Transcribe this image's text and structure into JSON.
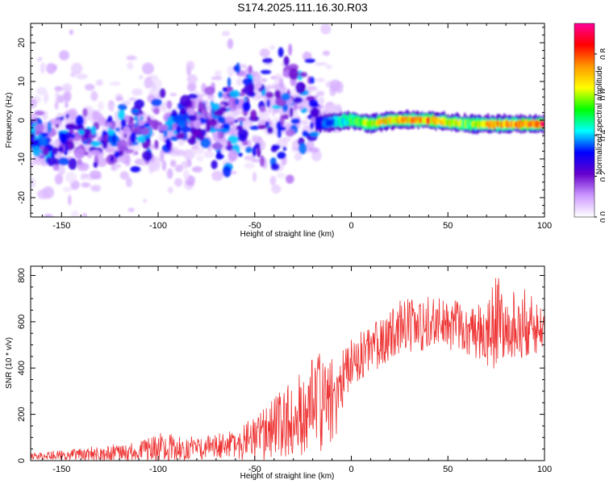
{
  "title": "S174.2025.111.16.30.R03",
  "colors": {
    "snr_line": "#ee3333",
    "axis": "#000000",
    "background": "#ffffff"
  },
  "chart_data": [
    {
      "type": "heatmap",
      "xlabel": "Height of straight line (km)",
      "ylabel": "Frequency (Hz)",
      "xlim": [
        -166,
        100
      ],
      "ylim": [
        -25,
        25
      ],
      "x_ticks": [
        -150,
        -100,
        -50,
        0,
        50,
        100
      ],
      "y_ticks": [
        -20,
        -10,
        0,
        10,
        20
      ],
      "grid": false,
      "colorbar": {
        "label": "Normalized spectral amplitude",
        "range": [
          0,
          0.95
        ],
        "ticks": [
          0.0,
          0.2,
          0.4,
          0.6,
          0.8
        ],
        "colormap": [
          "#ffffff",
          "#cc99ff",
          "#6600cc",
          "#0000ff",
          "#00ffff",
          "#00ff00",
          "#ffff00",
          "#ff9900",
          "#ff0000",
          "#ff0099"
        ]
      },
      "features": {
        "carrier_trace": {
          "x_range": [
            -18,
            100
          ],
          "frequency_hz": [
            [
              -18,
              -1
            ],
            [
              0,
              0
            ],
            [
              10,
              -1
            ],
            [
              20,
              0
            ],
            [
              40,
              0
            ],
            [
              60,
              -1
            ],
            [
              80,
              -1
            ],
            [
              100,
              -1
            ]
          ],
          "amplitude": [
            [
              -18,
              0.3
            ],
            [
              0,
              0.55
            ],
            [
              20,
              0.8
            ],
            [
              40,
              0.85
            ],
            [
              60,
              0.6
            ],
            [
              80,
              0.85
            ],
            [
              100,
              0.9
            ]
          ]
        },
        "scatter_region": {
          "x_range": [
            -166,
            -18
          ],
          "frequency_span_hz": [
            -20,
            20
          ],
          "typical_amplitude": 0.25
        }
      }
    },
    {
      "type": "line",
      "xlabel": "Height of straight line (km)",
      "ylabel": "SNR (10 * v/v)",
      "xlim": [
        -166,
        100
      ],
      "ylim": [
        0,
        840
      ],
      "x_ticks": [
        -150,
        -100,
        -50,
        0,
        50,
        100
      ],
      "y_ticks": [
        0,
        200,
        400,
        600,
        800
      ],
      "grid": false,
      "series": [
        {
          "x": [
            -166,
            -150,
            -130,
            -110,
            -100,
            -80,
            -60,
            -50,
            -40,
            -30,
            -20,
            -15,
            -10,
            -5,
            0,
            10,
            20,
            25,
            30,
            40,
            50,
            60,
            70,
            75,
            80,
            90,
            100
          ],
          "mean": [
            20,
            25,
            30,
            40,
            50,
            55,
            70,
            90,
            140,
            190,
            230,
            260,
            280,
            340,
            430,
            480,
            540,
            580,
            590,
            590,
            590,
            570,
            560,
            600,
            590,
            590,
            570
          ],
          "spread": [
            15,
            20,
            35,
            40,
            70,
            50,
            60,
            110,
            130,
            170,
            210,
            220,
            250,
            140,
            110,
            100,
            120,
            120,
            120,
            120,
            110,
            110,
            150,
            210,
            150,
            150,
            120
          ]
        }
      ]
    }
  ]
}
